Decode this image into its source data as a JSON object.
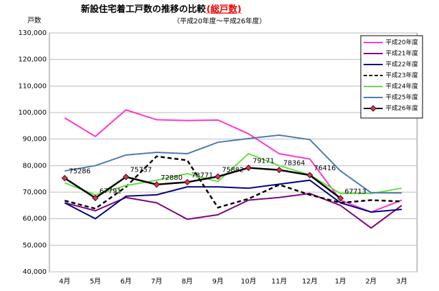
{
  "chart_data": {
    "type": "line",
    "title": "新設住宅着工戸数の推移の比較",
    "title_highlight": "(総戸数)",
    "subtitle": "（平成20年度～平成26年度）",
    "y_label": "戸数",
    "categories": [
      "4月",
      "5月",
      "6月",
      "7月",
      "8月",
      "9月",
      "10月",
      "11月",
      "12月",
      "1月",
      "2月",
      "3月"
    ],
    "ylim": [
      40000,
      130000
    ],
    "yticks": [
      {
        "value": 40000,
        "label": "40,000"
      },
      {
        "value": 50000,
        "label": "50,000"
      },
      {
        "value": 60000,
        "label": "60,000"
      },
      {
        "value": 70000,
        "label": "70,000"
      },
      {
        "value": 80000,
        "label": "80,000"
      },
      {
        "value": 90000,
        "label": "90,000"
      },
      {
        "value": 100000,
        "label": "100,000"
      },
      {
        "value": 110000,
        "label": "110,000"
      },
      {
        "value": 120000,
        "label": "120,000"
      },
      {
        "value": 130000,
        "label": "130,000"
      }
    ],
    "grid": true,
    "legend": "upper right",
    "series": [
      {
        "name": "平成20年度",
        "color": "#ff33cc",
        "style": "solid",
        "values": [
          98000,
          91000,
          101000,
          97300,
          97000,
          97200,
          92000,
          84500,
          82500,
          67000,
          62500,
          67000
        ]
      },
      {
        "name": "平成21年度",
        "color": "#800080",
        "style": "solid",
        "values": [
          66000,
          63000,
          68000,
          66000,
          59800,
          61500,
          67000,
          68000,
          69500,
          65000,
          56500,
          65000
        ]
      },
      {
        "name": "平成22年度",
        "color": "#000080",
        "style": "solid",
        "values": [
          66000,
          60000,
          68500,
          69000,
          72000,
          72000,
          71500,
          73000,
          74500,
          66000,
          62500,
          63500
        ]
      },
      {
        "name": "平成23年度",
        "color": "#000000",
        "style": "dashed",
        "values": [
          66800,
          63800,
          72000,
          83500,
          82000,
          64200,
          67500,
          72800,
          69000,
          66000,
          67000,
          66500
        ]
      },
      {
        "name": "平成24年度",
        "color": "#66dd44",
        "style": "solid",
        "values": [
          73500,
          69000,
          72500,
          74500,
          77000,
          74000,
          84500,
          80000,
          76500,
          69500,
          69500,
          71500
        ]
      },
      {
        "name": "平成25年度",
        "color": "#4a7ab0",
        "style": "solid",
        "values": [
          78000,
          80000,
          84000,
          85000,
          84500,
          88800,
          90200,
          91500,
          89800,
          78000,
          69800,
          69700
        ]
      },
      {
        "name": "平成26年度",
        "color": "#000000",
        "style": "marker",
        "values": [
          75286,
          67791,
          75757,
          72880,
          73771,
          75882,
          79171,
          78364,
          76416,
          67713,
          null,
          null
        ]
      }
    ]
  }
}
